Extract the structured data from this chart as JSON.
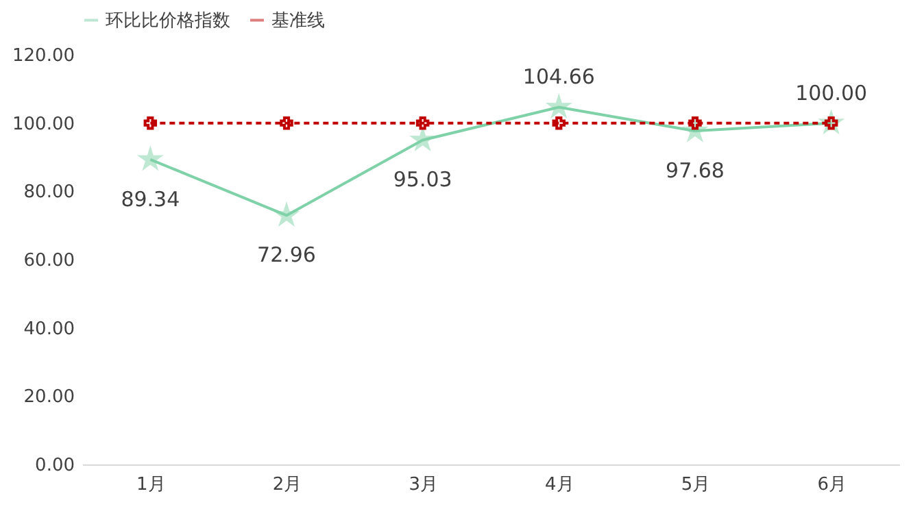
{
  "chart_data": {
    "type": "line",
    "categories": [
      "1月",
      "2月",
      "3月",
      "4月",
      "5月",
      "6月"
    ],
    "series": [
      {
        "name": "环比比价格指数",
        "color": "#7fd1a8",
        "marker": "star",
        "line_style": "solid",
        "values": [
          89.34,
          72.96,
          95.03,
          104.66,
          97.68,
          100.0
        ],
        "value_labels": [
          "89.34",
          "72.96",
          "95.03",
          "104.66",
          "97.68",
          "100.00"
        ]
      },
      {
        "name": "基准线",
        "color": "#c00000",
        "marker": "cross",
        "line_style": "dashed",
        "values": [
          100,
          100,
          100,
          100,
          100,
          100
        ]
      }
    ],
    "ylim": [
      0,
      120
    ],
    "yticks": [
      {
        "value": 0,
        "label": "0.00"
      },
      {
        "value": 20,
        "label": "20.00"
      },
      {
        "value": 40,
        "label": "40.00"
      },
      {
        "value": 60,
        "label": "60.00"
      },
      {
        "value": 80,
        "label": "80.00"
      },
      {
        "value": 100,
        "label": "100.00"
      },
      {
        "value": 120,
        "label": "120.00"
      }
    ],
    "grid": false,
    "legend": "top"
  }
}
